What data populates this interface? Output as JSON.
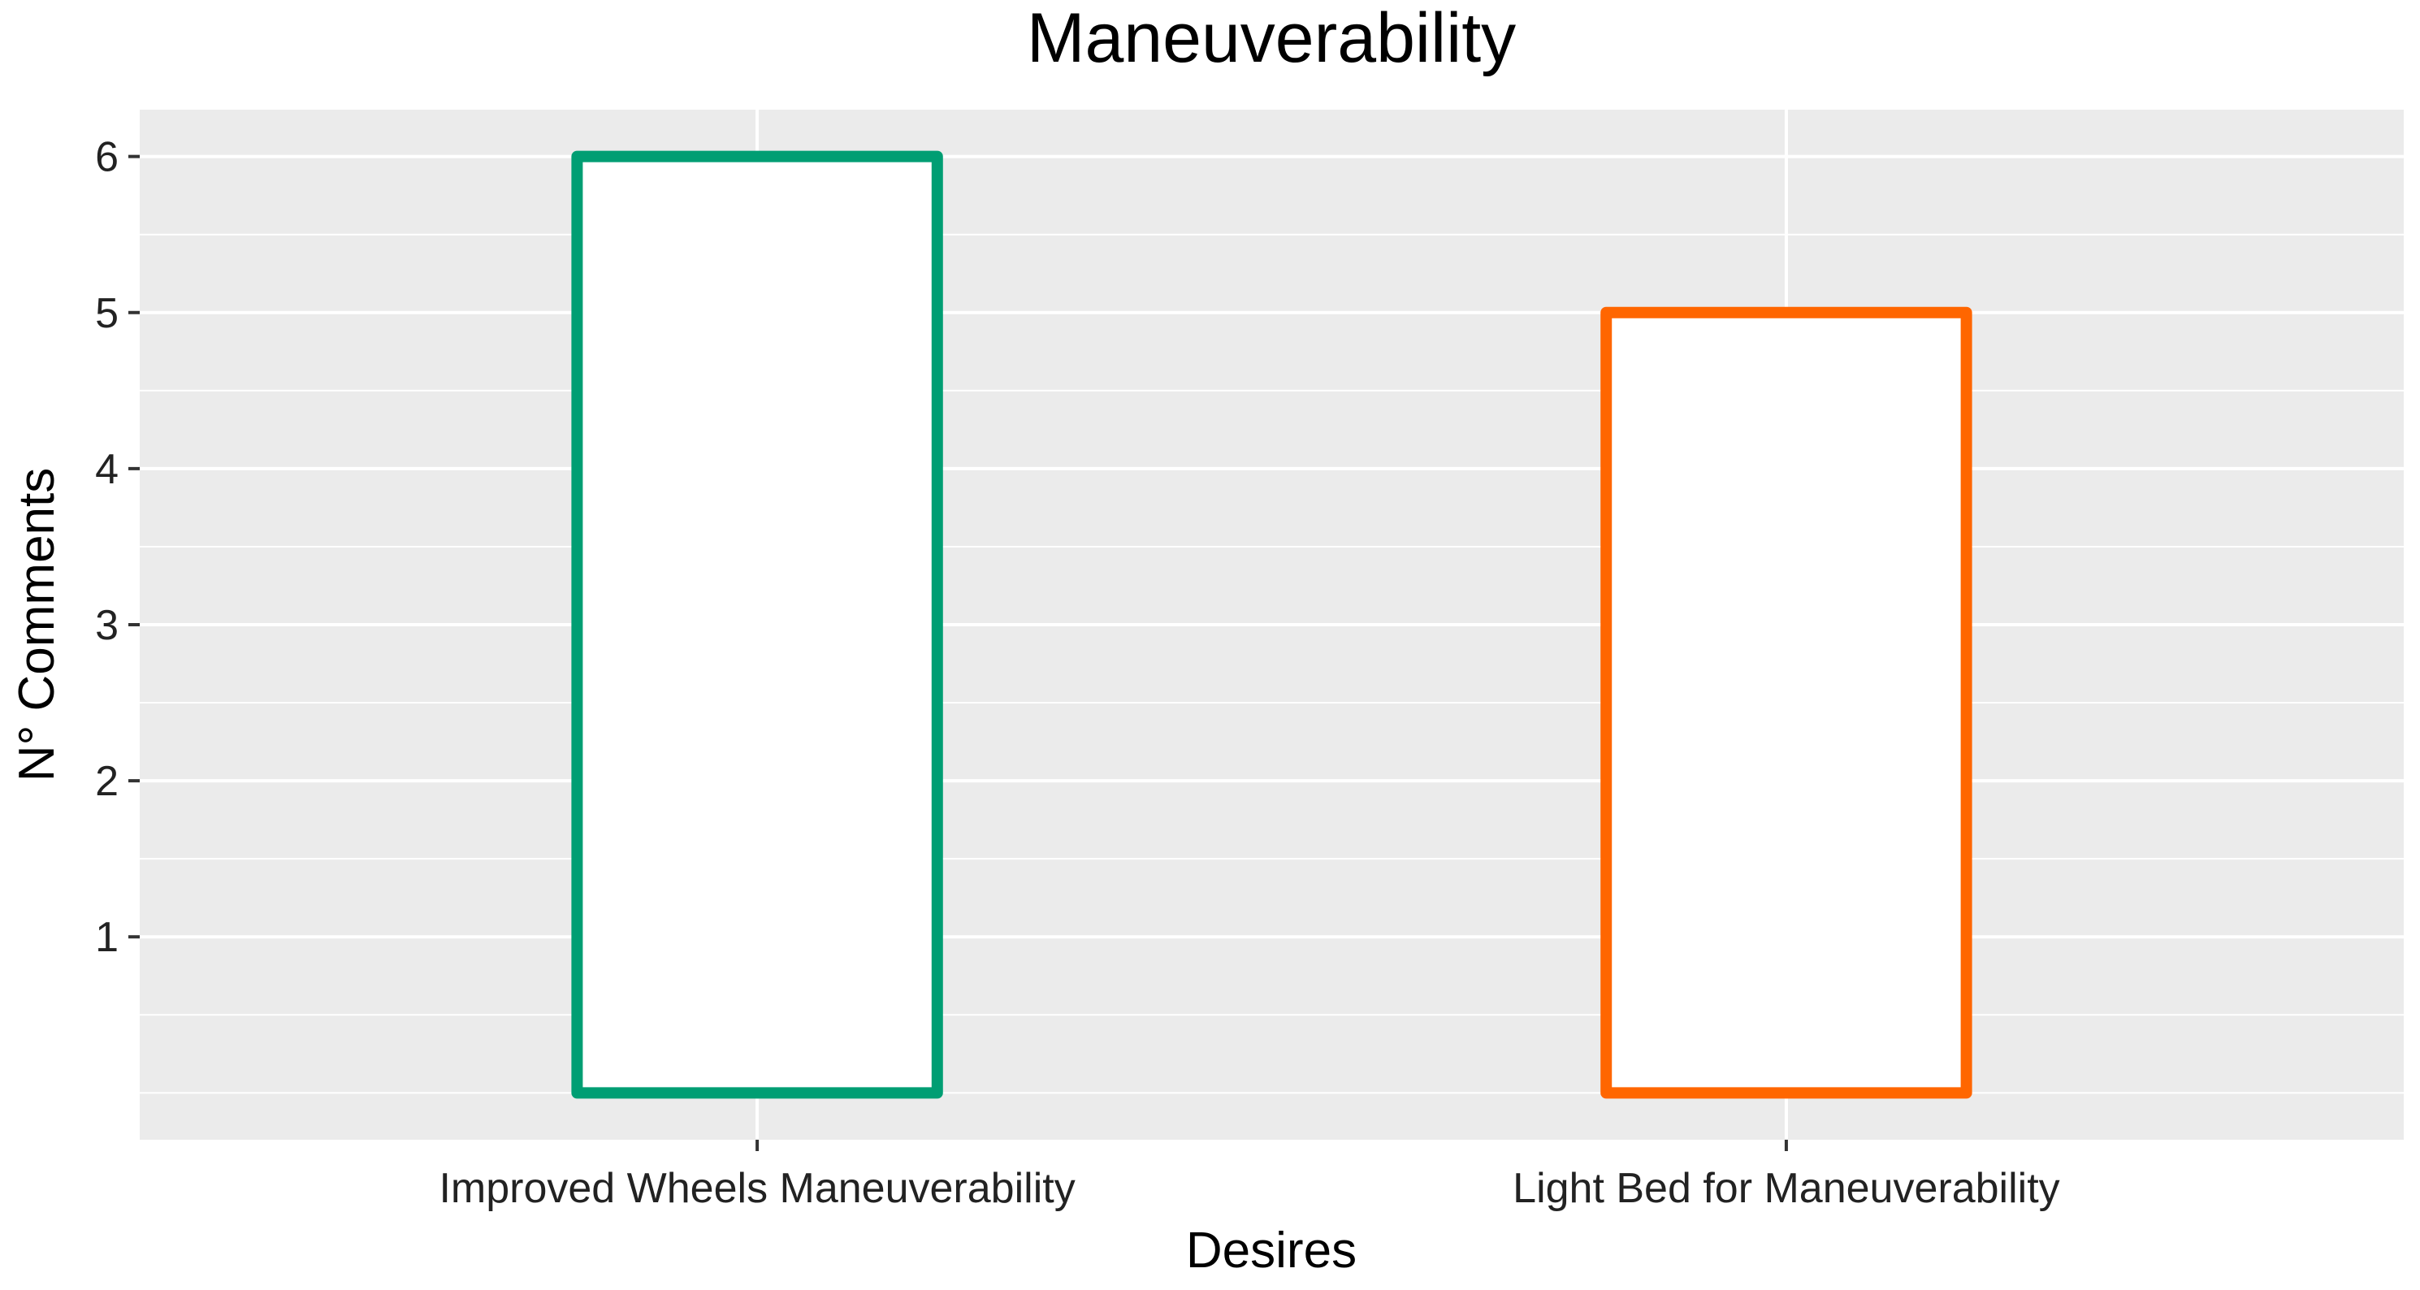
{
  "chart_data": {
    "type": "bar",
    "title": "Maneuverability",
    "xlabel": "Desires",
    "ylabel": "N° Comments",
    "categories": [
      "Improved Wheels Maneuverability",
      "Light Bed for Maneuverability"
    ],
    "values": [
      6,
      5
    ],
    "ylim": [
      -0.3,
      6.3
    ],
    "yticks": [
      "1",
      "2",
      "3",
      "4",
      "5",
      "6"
    ],
    "grid": true,
    "bar_fill": "#ffffff",
    "bar_colors": [
      "#009e73",
      "#ff6600"
    ],
    "panel_background": "#ebebeb"
  }
}
